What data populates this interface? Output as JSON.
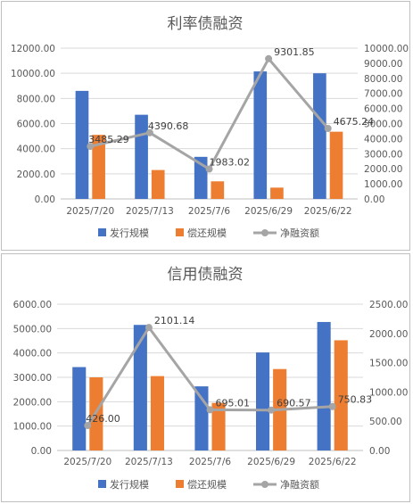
{
  "colors": {
    "issue": "#4472C4",
    "repay": "#ED7D31",
    "net": "#A5A5A5",
    "grid": "#d9d9d9",
    "text": "#595959"
  },
  "chart_data": [
    {
      "type": "bar",
      "title": "利率债融资",
      "categories": [
        "2025/7/20",
        "2025/7/13",
        "2025/7/6",
        "2025/6/29",
        "2025/6/22"
      ],
      "series": [
        {
          "name": "发行规模",
          "type": "bar",
          "axis": "left",
          "values": [
            8600,
            6700,
            3350,
            10150,
            10000
          ]
        },
        {
          "name": "偿还规模",
          "type": "bar",
          "axis": "left",
          "values": [
            5100,
            2300,
            1400,
            900,
            5350
          ]
        },
        {
          "name": "净融资额",
          "type": "line",
          "axis": "right",
          "values": [
            3485.29,
            4390.68,
            1983.02,
            9301.85,
            4675.24
          ],
          "labels": [
            "3485.29",
            "4390.68",
            "1983.02",
            "9301.85",
            "4675.24"
          ]
        }
      ],
      "left_ticks": [
        "0.00",
        "2000.00",
        "4000.00",
        "6000.00",
        "8000.00",
        "10000.00",
        "12000.00"
      ],
      "right_ticks": [
        "0.00",
        "1000.00",
        "2000.00",
        "3000.00",
        "4000.00",
        "5000.00",
        "6000.00",
        "7000.00",
        "8000.00",
        "9000.00",
        "10000.00"
      ],
      "ylim_left": [
        0,
        12000
      ],
      "ylim_right": [
        0,
        10000
      ],
      "gridlines": true,
      "legend_position": "bottom"
    },
    {
      "type": "bar",
      "title": "信用债融资",
      "categories": [
        "2025/7/20",
        "2025/7/13",
        "2025/7/6",
        "2025/6/29",
        "2025/6/22"
      ],
      "series": [
        {
          "name": "发行规模",
          "type": "bar",
          "axis": "left",
          "values": [
            3420,
            5150,
            2630,
            4020,
            5270
          ]
        },
        {
          "name": "偿还规模",
          "type": "bar",
          "axis": "left",
          "values": [
            3000,
            3050,
            1950,
            3340,
            4520
          ]
        },
        {
          "name": "净融资额",
          "type": "line",
          "axis": "right",
          "values": [
            426.0,
            2101.14,
            695.01,
            690.57,
            750.83
          ],
          "labels": [
            "426.00",
            "2101.14",
            "695.01",
            "690.57",
            "750.83"
          ]
        }
      ],
      "left_ticks": [
        "0.00",
        "1000.00",
        "2000.00",
        "3000.00",
        "4000.00",
        "5000.00",
        "6000.00"
      ],
      "right_ticks": [
        "0.00",
        "500.00",
        "1000.00",
        "1500.00",
        "2000.00",
        "2500.00"
      ],
      "ylim_left": [
        0,
        6000
      ],
      "ylim_right": [
        0,
        2500
      ],
      "gridlines": true,
      "legend_position": "bottom"
    }
  ]
}
